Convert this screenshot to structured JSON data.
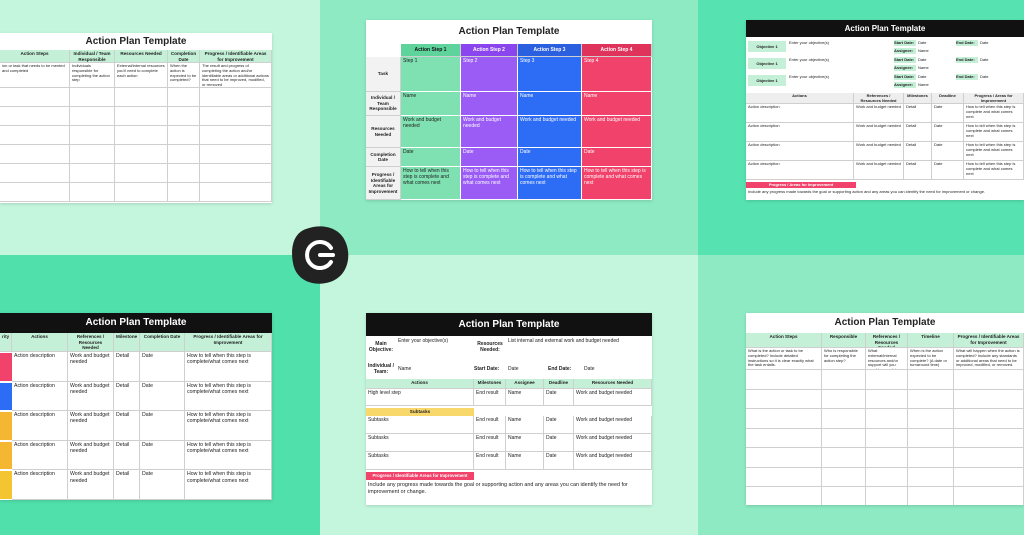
{
  "panels": [
    {
      "title": "Action Plan Template",
      "headers": [
        "Action Steps",
        "Individual / Team Responsible",
        "Resources Needed",
        "Completion Date",
        "Progress / Identifiable Areas for Improvement"
      ],
      "description": [
        "ion or task that needs to be mented and completed",
        "Individuals responsible for completing the action step",
        "External/internal resources you'll need to complete each action",
        "When the action is expected to be completed?",
        "The result and progress of completing the action and/or identifiable areas or additional actions that need to be improved, modified, or removed"
      ]
    },
    {
      "title": "Action Plan Template",
      "headers": [
        "Action Step 1",
        "Action Step 2",
        "Action Step 3",
        "Action Step 4"
      ],
      "row_labels": [
        "Task",
        "Individual / Team Responsible",
        "Resources Needed",
        "Completion Date",
        "Progress / Identifiable Areas for Improvement"
      ],
      "rows": [
        [
          "Step 1",
          "Step 2",
          "Step 3",
          "Step 4"
        ],
        [
          "Name",
          "Name",
          "Name",
          "Name"
        ],
        [
          "Work and budget needed",
          "Work and budget needed",
          "Work and budget needed",
          "Work and budget needed"
        ],
        [
          "Date",
          "Date",
          "Date",
          "Date"
        ],
        [
          "How to tell when this step is complete and what comes next",
          "How to tell when this step is complete and what comes next",
          "How to tell when this step is complete and what comes next",
          "How to tell when this step is complete and what comes next"
        ]
      ]
    },
    {
      "title": "Action Plan Template",
      "objectives": [
        {
          "label": "Objective 1",
          "text": "Enter your objective(s)",
          "start_label": "Start Date:",
          "start": "Date",
          "end_label": "End Date:",
          "end": "Date",
          "assignee_label": "Assignee:",
          "assignee": "Name"
        },
        {
          "label": "Objective 1",
          "text": "Enter your objective(s)",
          "start_label": "Start Date:",
          "start": "Date",
          "end_label": "End Date:",
          "end": "Date",
          "assignee_label": "Assignee:",
          "assignee": "Name"
        },
        {
          "label": "Objective 1",
          "text": "Enter your objective(s)",
          "start_label": "Start Date:",
          "start": "Date",
          "end_label": "End Date:",
          "end": "Date",
          "assignee_label": "Assignee:",
          "assignee": "Name"
        }
      ],
      "headers": [
        "Actions",
        "References / Resources Needed",
        "Milestones",
        "Deadline",
        "Progress / Areas for Improvement"
      ],
      "rows": [
        [
          "Action description",
          "Work and budget needed",
          "Detail",
          "Date",
          "How to tell when this step is complete and what comes next"
        ],
        [
          "Action description",
          "Work and budget needed",
          "Detail",
          "Date",
          "How to tell when this step is complete and what comes next"
        ],
        [
          "Action description",
          "Work and budget needed",
          "Detail",
          "Date",
          "How to tell when this step is complete and what comes next"
        ],
        [
          "Action description",
          "Work and budget needed",
          "Detail",
          "Date",
          "How to tell when this step is complete and what comes next"
        ]
      ],
      "progress_title": "Progress / Areas for Improvement",
      "progress_text": "Include any progress made towards the goal or supporting action and any areas you can identify the need for improvement or change."
    },
    {
      "title": "Action Plan Template",
      "headers": [
        "rity",
        "Actions",
        "References / Resources Needed",
        "Milestone",
        "Completion Date",
        "Progress / Identifiable Areas for Improvement"
      ],
      "rows": [
        [
          "Action description",
          "Work and budget needed",
          "Detail",
          "Date",
          "How to tell when this step is complete/what comes next"
        ],
        [
          "Action description",
          "Work and budget needed",
          "Detail",
          "Date",
          "How to tell when this step is complete/what comes next"
        ],
        [
          "Action description",
          "Work and budget needed",
          "Detail",
          "Date",
          "How to tell when this step is complete/what comes next"
        ],
        [
          "Action description",
          "Work and budget needed",
          "Detail",
          "Date",
          "How to tell when this step is complete/what comes next"
        ],
        [
          "Action description",
          "Work and budget needed",
          "Detail",
          "Date",
          "How to tell when this step is complete/what comes next"
        ]
      ]
    },
    {
      "title": "Action Plan Template",
      "main_objective_label": "Main Objective:",
      "main_objective": "Enter your objective(s)",
      "resources_label": "Resources Needed:",
      "resources": "List internal and external work and budget needed",
      "team_label": "Individual / Team:",
      "team": "Name",
      "start_label": "Start Date:",
      "start": "Date",
      "end_label": "End Date:",
      "end": "Date",
      "headers": [
        "Actions",
        "Milestones",
        "Assignee",
        "Deadline",
        "Resources Needed"
      ],
      "rows": [
        [
          "High level step",
          "End result",
          "Name",
          "Date",
          "Work and budget needed"
        ]
      ],
      "subtasks_label": "Subtasks",
      "subtask_rows": [
        [
          "Subtasks",
          "End result",
          "Name",
          "Date",
          "Work and budget needed"
        ],
        [
          "Subtasks",
          "End result",
          "Name",
          "Date",
          "Work and budget needed"
        ],
        [
          "Subtasks",
          "End result",
          "Name",
          "Date",
          "Work and budget needed"
        ]
      ],
      "progress_title": "Progress / Identifiable Areas for Improvement",
      "progress_text": "Include any progress made towards the goal or supporting action and any areas you can identify the need for improvement or change."
    },
    {
      "title": "Action Plan Template",
      "headers": [
        "Action Steps",
        "Responsible",
        "References / Resources Needed",
        "Timeline",
        "Progress / Identifiable Areas for Improvement"
      ],
      "description": [
        "What is the action or task to be completed? Include detailed instructions so it is clear exactly what the task entails.",
        "Who is responsible for completing the action step?",
        "What external/internal resources and/or support will you need to complete each action?",
        "When is the action expected to be complete? (A date or turnaround time)",
        "What will happen when the action is completed? Include any standards or additional areas that need to be improved, modified, or removed."
      ]
    }
  ]
}
